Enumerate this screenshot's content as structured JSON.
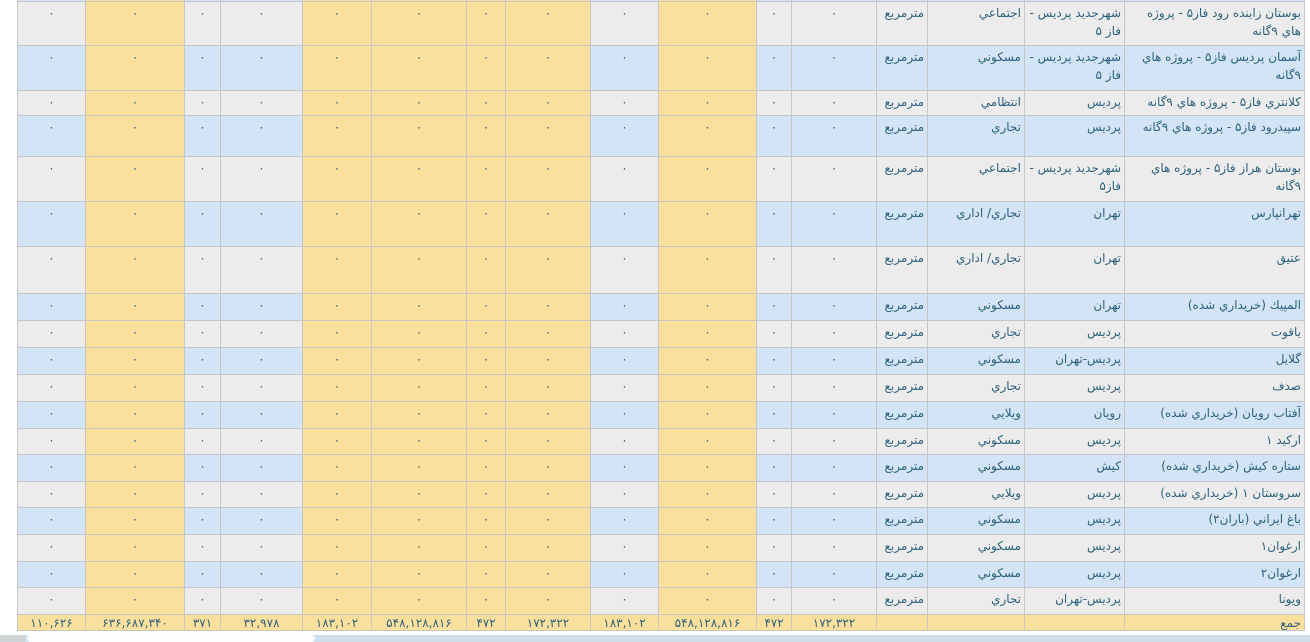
{
  "colors": {
    "column_highlight_yellow": "#fbdf9d",
    "row_stripe_blue": "#d2e4f5",
    "row_stripe_gray": "#ececec",
    "grid_border": "#c6c6c6",
    "cell_text": "#2d627e",
    "scrollbar_track": "#cfdeeb",
    "scrollbar_thumb": "#fdfdfd",
    "scrollbar_corner": "#cfd4d7"
  },
  "table": {
    "zero_value": "۰",
    "rows": [
      {
        "name": "بوستان زاينده رود فاز۵ - پروژه هاي ۹گانه",
        "city": "شهرجديد پرديس - فاز ۵",
        "type": "اجتماعي",
        "unit": "مترمربع"
      },
      {
        "name": "آسمان پرديس فاز۵ - پروژه هاي ۹گانه",
        "city": "شهرجديد پرديس - فاز ۵",
        "type": "مسكوني",
        "unit": "مترمربع"
      },
      {
        "name": "كلانتري فاز۵ - پروژه هاي ۹گانه",
        "city": "پرديس",
        "type": "انتظامي",
        "unit": "مترمربع"
      },
      {
        "name": "سپيدرود فاز۵ - پروژه هاي ۹گانه",
        "city": "پرديس",
        "type": "تجاري",
        "unit": "مترمربع"
      },
      {
        "name": "بوستان هراز فاز۵ - پروژه هاي ۹گانه",
        "city": "شهرجديد پرديس - فاز۵",
        "type": "اجتماعي",
        "unit": "مترمربع"
      },
      {
        "name": "تهرانپارس",
        "city": "تهران",
        "type": "تجاري/ اداري",
        "unit": "مترمربع"
      },
      {
        "name": "عتيق",
        "city": "تهران",
        "type": "تجاري/ اداري",
        "unit": "مترمربع"
      },
      {
        "name": "المپيك (خريداري شده)",
        "city": "تهران",
        "type": "مسكوني",
        "unit": "مترمربع"
      },
      {
        "name": "ياقوت",
        "city": "پرديس",
        "type": "تجاري",
        "unit": "مترمربع"
      },
      {
        "name": "گلايل",
        "city": "پرديس-تهران",
        "type": "مسكوني",
        "unit": "مترمربع"
      },
      {
        "name": "صدف",
        "city": "پرديس",
        "type": "تجاري",
        "unit": "مترمربع"
      },
      {
        "name": "آفتاب رويان (خريداري شده)",
        "city": "رويان",
        "type": "ويلايي",
        "unit": "مترمربع"
      },
      {
        "name": "اركيد ۱",
        "city": "پرديس",
        "type": "مسكوني",
        "unit": "مترمربع"
      },
      {
        "name": "ستاره كيش (خريداري شده)",
        "city": "كيش",
        "type": "مسكوني",
        "unit": "مترمربع"
      },
      {
        "name": "سروستان ۱ (خريداري شده)",
        "city": "پرديس",
        "type": "ويلايي",
        "unit": "مترمربع"
      },
      {
        "name": "باغ ايراني (باران۲)",
        "city": "پرديس",
        "type": "مسكوني",
        "unit": "مترمربع"
      },
      {
        "name": "ارغوان۱",
        "city": "پرديس",
        "type": "مسكوني",
        "unit": "مترمربع"
      },
      {
        "name": "ارغوان۲",
        "city": "پرديس",
        "type": "مسكوني",
        "unit": "مترمربع"
      },
      {
        "name": "ويونا",
        "city": "پرديس-تهران",
        "type": "تجاري",
        "unit": "مترمربع"
      }
    ],
    "totals": {
      "label": "جمع",
      "values_right_to_left": [
        "۱۷۲,۳۲۲",
        "۴۷۲",
        "۵۴۸,۱۲۸,۸۱۶",
        "۱۸۳,۱۰۲",
        "۱۷۲,۳۲۲",
        "۴۷۲",
        "۵۴۸,۱۲۸,۸۱۶",
        "۱۸۳,۱۰۲",
        "۳۲,۹۷۸",
        "۳۷۱",
        "۶۳۶,۶۸۷,۳۴۰",
        "۱۱۰,۶۲۶"
      ]
    }
  }
}
